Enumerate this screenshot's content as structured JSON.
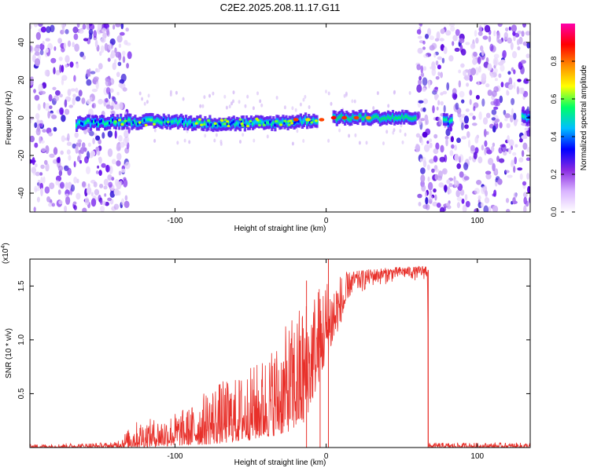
{
  "title": "C2E2.2025.208.11.17.G11",
  "chart_data": [
    {
      "type": "heatmap",
      "xlabel": "Height of straight line (km)",
      "ylabel": "Frequency (Hz)",
      "xlim": [
        -196,
        135
      ],
      "ylim": [
        -50,
        50
      ],
      "xticks": [
        -100,
        0,
        100
      ],
      "xtick_labels": [
        "-100",
        "0",
        "100"
      ],
      "yticks": [
        -40,
        -20,
        0,
        20,
        40
      ],
      "ytick_labels": [
        "-40",
        "-20",
        "0",
        "20",
        "40"
      ],
      "colorbar": {
        "label": "Normalized spectral amplitude",
        "range": [
          0,
          1
        ],
        "ticks": [
          0.0,
          0.2,
          0.4,
          0.6,
          0.8
        ],
        "tick_labels": [
          "0.0",
          "0.2",
          "0.4",
          "0.6",
          "0.8"
        ],
        "colors": [
          "#ffffff",
          "#d9b3ff",
          "#8a2be2",
          "#0000ff",
          "#00bfff",
          "#00ff66",
          "#ffff00",
          "#ff8c00",
          "#ff0000",
          "#ff00aa"
        ]
      },
      "ridge": {
        "segments": [
          {
            "x": [
              -165,
              -140,
              -120,
              -100,
              -80,
              -60,
              -40,
              -20,
              -5
            ],
            "y": [
              -3,
              -2,
              -2,
              -2,
              -3,
              -3,
              -3,
              -2,
              -1
            ]
          },
          {
            "x": [
              5,
              20,
              40,
              60
            ],
            "y": [
              0,
              0,
              0,
              0
            ]
          },
          {
            "x": [
              78,
              84
            ],
            "y": [
              -2,
              -2
            ]
          },
          {
            "x": [
              130,
              135
            ],
            "y": [
              0,
              0
            ]
          }
        ]
      },
      "noise_regions": [
        [
          -196,
          -130
        ],
        [
          60,
          135
        ]
      ]
    },
    {
      "type": "line",
      "xlabel": "Height of straight line (km)",
      "ylabel": "SNR (10 * v/v)",
      "y_multiplier": "(x10",
      "y_multiplier_exp": "4",
      "y_multiplier_close": ")",
      "xlim": [
        -196,
        135
      ],
      "ylim": [
        0,
        17500
      ],
      "xticks": [
        -100,
        0,
        100
      ],
      "xtick_labels": [
        "-100",
        "0",
        "100"
      ],
      "yticks": [
        5000,
        10000,
        15000
      ],
      "ytick_labels": [
        "0.5",
        "1.0",
        "1.5"
      ],
      "line_color": "#e8302a",
      "envelope": {
        "x": [
          -196,
          -140,
          -125,
          -110,
          -90,
          -75,
          -60,
          -45,
          -30,
          -15,
          0,
          15,
          30,
          50,
          60,
          67,
          68,
          135
        ],
        "upper": [
          300,
          500,
          2500,
          2800,
          3800,
          6000,
          6500,
          8000,
          10500,
          14000,
          16000,
          16300,
          16600,
          16800,
          16800,
          17000,
          300,
          400
        ],
        "lower": [
          0,
          0,
          0,
          100,
          200,
          300,
          500,
          800,
          1200,
          2000,
          8000,
          13500,
          14800,
          15500,
          15500,
          15500,
          0,
          0
        ]
      },
      "spikes": [
        {
          "x": 1.5,
          "y": 17500
        },
        {
          "x": -13,
          "y": 15500
        },
        {
          "x": -4,
          "y": 13800
        }
      ]
    }
  ]
}
